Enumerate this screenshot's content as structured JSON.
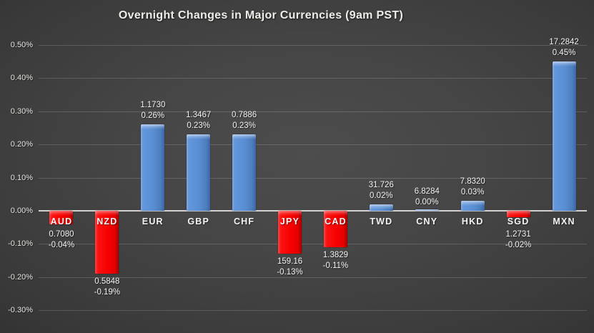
{
  "chart_data": {
    "type": "bar",
    "title": "Overnight Changes in Major Currencies (9am PST)",
    "categories": [
      "AUD",
      "NZD",
      "EUR",
      "GBP",
      "CHF",
      "JPY",
      "CAD",
      "TWD",
      "CNY",
      "HKD",
      "SGD",
      "MXN"
    ],
    "rates": [
      "0.7080",
      "0.5848",
      "1.1730",
      "1.3467",
      "0.7886",
      "159.16",
      "1.3829",
      "31.726",
      "6.8284",
      "7.8320",
      "1.2731",
      "17.2842"
    ],
    "pct_change": [
      -0.04,
      -0.19,
      0.26,
      0.23,
      0.23,
      -0.13,
      -0.11,
      0.02,
      0.0,
      0.03,
      -0.02,
      0.45
    ],
    "pct_labels": [
      "-0.04%",
      "-0.19%",
      "0.26%",
      "0.23%",
      "0.23%",
      "-0.13%",
      "-0.11%",
      "0.02%",
      "0.00%",
      "0.03%",
      "-0.02%",
      "0.45%"
    ],
    "y_tick_values": [
      0.5,
      0.4,
      0.3,
      0.2,
      0.1,
      0.0,
      -0.1,
      -0.2,
      -0.3
    ],
    "y_tick_labels": [
      "0.50%",
      "0.40%",
      "0.30%",
      "0.20%",
      "0.10%",
      "0.00%",
      "-0.10%",
      "-0.20%",
      "-0.30%"
    ],
    "ylim": [
      -0.35,
      0.55
    ],
    "grid": true,
    "legend": false,
    "xlabel": "",
    "ylabel": "",
    "positive_color": "#5b8fd4",
    "negative_color": "#f60000",
    "gridline_color": "#6e6e6e",
    "zero_line_color": "#dddddd",
    "label_color": "#f2f2f0",
    "title_color": "#eeeee8"
  }
}
